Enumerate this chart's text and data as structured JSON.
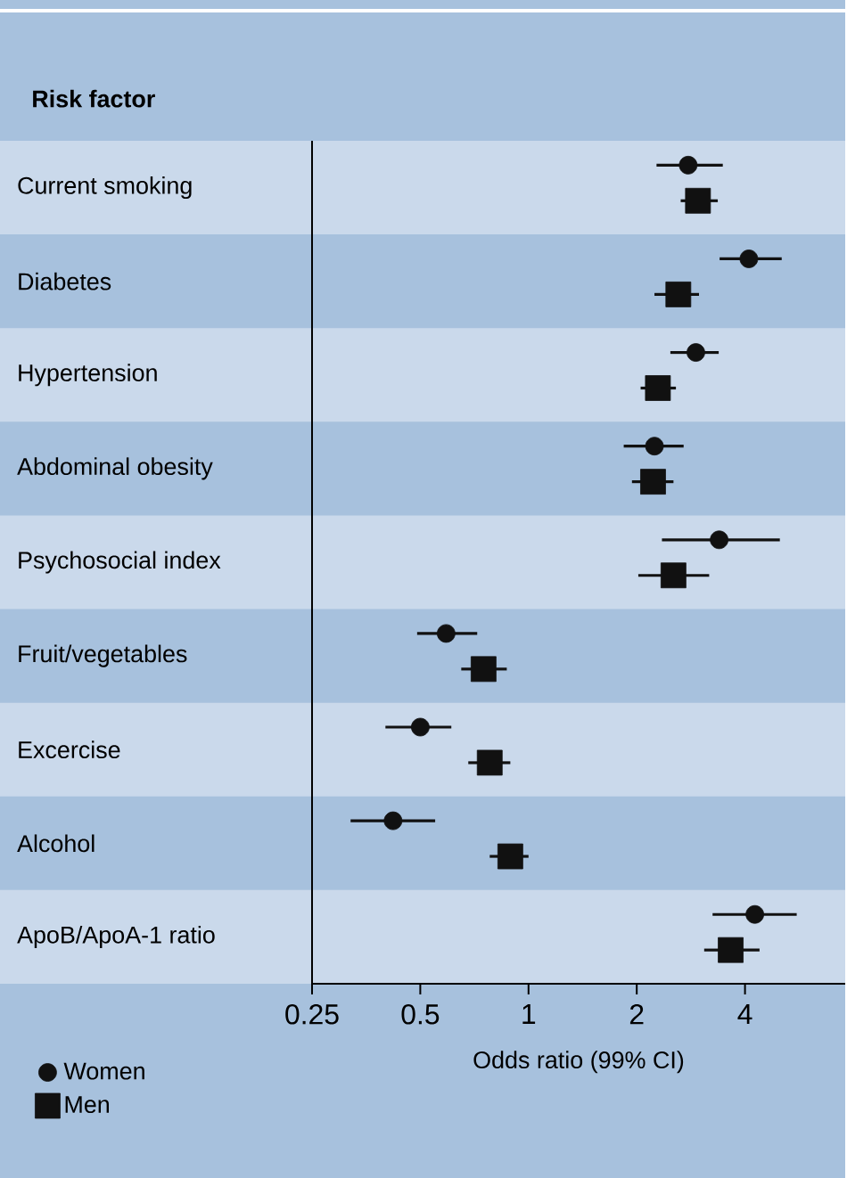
{
  "chart_data": {
    "type": "scatter",
    "orientation": "horizontal",
    "log": "x",
    "ylabel": "Risk factor",
    "xlabel": "Odds ratio (99% CI)",
    "categories": [
      "Current smoking",
      "Diabetes",
      "Hypertension",
      "Abdominal obesity",
      "Psychosocial index",
      "Fruit/vegetables",
      "Excercise",
      "Alcohol",
      "ApoB/ApoA-1 ratio"
    ],
    "xlim": [
      0.25,
      7.6
    ],
    "xticks": [
      0.25,
      0.5,
      1,
      2,
      4
    ],
    "legend": "bottom left",
    "series": [
      {
        "name": "Women",
        "color": "#111111",
        "marker": "circle",
        "values": [
          2.78,
          4.1,
          2.92,
          2.24,
          3.39,
          0.59,
          0.5,
          0.42,
          4.26
        ],
        "errors": [
          [
            2.27,
            3.47
          ],
          [
            3.4,
            5.06
          ],
          [
            2.48,
            3.38
          ],
          [
            1.84,
            2.7
          ],
          [
            2.35,
            5.0
          ],
          [
            0.49,
            0.72
          ],
          [
            0.4,
            0.61
          ],
          [
            0.32,
            0.55
          ],
          [
            3.25,
            5.57
          ]
        ]
      },
      {
        "name": "Men",
        "color": "#111111",
        "marker": "square",
        "values": [
          2.96,
          2.61,
          2.29,
          2.22,
          2.53,
          0.75,
          0.78,
          0.89,
          3.65
        ],
        "errors": [
          [
            2.65,
            3.36
          ],
          [
            2.24,
            2.98
          ],
          [
            2.05,
            2.57
          ],
          [
            1.94,
            2.53
          ],
          [
            2.02,
            3.18
          ],
          [
            0.65,
            0.87
          ],
          [
            0.68,
            0.89
          ],
          [
            0.78,
            1.0
          ],
          [
            3.08,
            4.39
          ]
        ]
      }
    ]
  }
}
